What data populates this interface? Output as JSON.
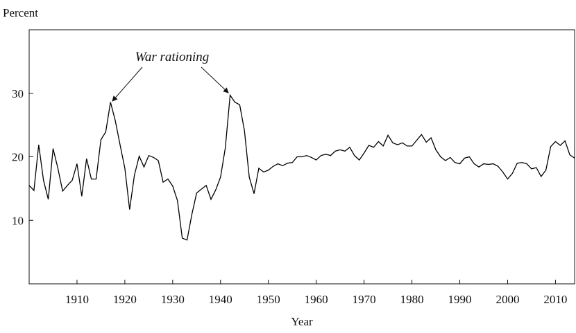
{
  "chart_data": {
    "type": "line",
    "y_label": "Percent",
    "x_label": "Year",
    "annotation": "War rationing",
    "x": [
      1900,
      1901,
      1902,
      1903,
      1904,
      1905,
      1906,
      1907,
      1908,
      1909,
      1910,
      1911,
      1912,
      1913,
      1914,
      1915,
      1916,
      1917,
      1918,
      1919,
      1920,
      1921,
      1922,
      1923,
      1924,
      1925,
      1926,
      1927,
      1928,
      1929,
      1930,
      1931,
      1932,
      1933,
      1934,
      1935,
      1936,
      1937,
      1938,
      1939,
      1940,
      1941,
      1942,
      1943,
      1944,
      1945,
      1946,
      1947,
      1948,
      1949,
      1950,
      1951,
      1952,
      1953,
      1954,
      1955,
      1956,
      1957,
      1958,
      1959,
      1960,
      1961,
      1962,
      1963,
      1964,
      1965,
      1966,
      1967,
      1968,
      1969,
      1970,
      1971,
      1972,
      1973,
      1974,
      1975,
      1976,
      1977,
      1978,
      1979,
      1980,
      1981,
      1982,
      1983,
      1984,
      1985,
      1986,
      1987,
      1988,
      1989,
      1990,
      1991,
      1992,
      1993,
      1994,
      1995,
      1996,
      1997,
      1998,
      1999,
      2000,
      2001,
      2002,
      2003,
      2004,
      2005,
      2006,
      2007,
      2008,
      2009,
      2010,
      2011,
      2012,
      2013,
      2014
    ],
    "values": [
      15.5,
      14.7,
      21.9,
      16.3,
      13.3,
      21.3,
      18.2,
      14.6,
      15.5,
      16.3,
      18.9,
      13.8,
      19.7,
      16.5,
      16.5,
      22.7,
      23.9,
      28.6,
      25.7,
      21.9,
      18.2,
      11.7,
      17.1,
      20.1,
      18.4,
      20.2,
      19.9,
      19.4,
      16.0,
      16.5,
      15.4,
      13.1,
      7.2,
      6.9,
      10.9,
      14.3,
      14.9,
      15.5,
      13.3,
      14.8,
      16.8,
      21.4,
      29.7,
      28.6,
      28.2,
      24.1,
      16.8,
      14.2,
      18.2,
      17.6,
      17.9,
      18.5,
      18.9,
      18.6,
      19.0,
      19.1,
      20.0,
      20.0,
      20.2,
      19.9,
      19.5,
      20.2,
      20.4,
      20.2,
      20.9,
      21.1,
      20.9,
      21.5,
      20.2,
      19.5,
      20.6,
      21.8,
      21.5,
      22.4,
      21.7,
      23.4,
      22.2,
      21.9,
      22.2,
      21.7,
      21.7,
      22.6,
      23.5,
      22.3,
      23.0,
      21.1,
      20.0,
      19.4,
      19.9,
      19.1,
      18.9,
      19.8,
      20.0,
      18.9,
      18.4,
      18.9,
      18.8,
      18.9,
      18.5,
      17.6,
      16.5,
      17.4,
      19.0,
      19.1,
      18.9,
      18.1,
      18.3,
      16.9,
      17.9,
      21.6,
      22.4,
      21.8,
      22.5,
      20.3,
      19.8
    ],
    "color": "#000000",
    "xlim": [
      1900,
      2014
    ],
    "xticks": [
      1910,
      1920,
      1930,
      1940,
      1950,
      1960,
      1970,
      1980,
      1990,
      2000,
      2010
    ],
    "ylim": [
      0,
      40
    ],
    "yticks": [
      10,
      20,
      30
    ]
  }
}
